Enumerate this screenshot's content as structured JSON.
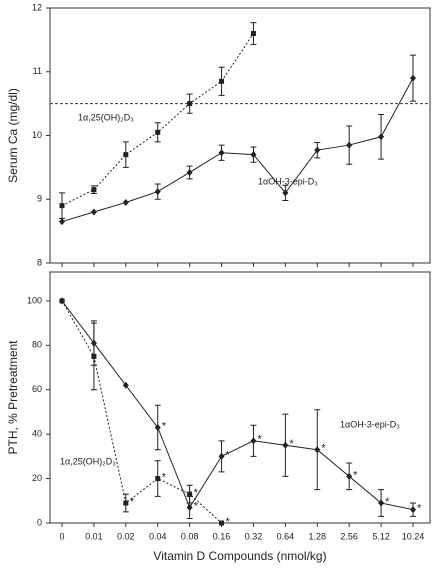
{
  "chart_data": [
    {
      "type": "line",
      "y_label": "Serum Ca (mg/dl)",
      "categories": [
        "0",
        "0.01",
        "0.02",
        "0.04",
        "0.08",
        "0.16",
        "0.32",
        "0.64",
        "1.28",
        "2.56",
        "5.12",
        "10.24"
      ],
      "ylim": [
        8,
        12
      ],
      "yticks": [
        8,
        9,
        10,
        11,
        12
      ],
      "reference_line": 10.5,
      "series": [
        {
          "name": "1α,25(OH)₂D₃",
          "color": "#222222",
          "line_style": "dotted",
          "marker": "square",
          "values": [
            8.9,
            9.15,
            9.7,
            10.05,
            10.5,
            10.85,
            11.6,
            null,
            null,
            null,
            null,
            null
          ],
          "errors": [
            0.2,
            0.06,
            0.2,
            0.15,
            0.15,
            0.22,
            0.17,
            null,
            null,
            null,
            null,
            null
          ]
        },
        {
          "name": "1αOH-3-epi-D₃",
          "color": "#222222",
          "line_style": "solid",
          "marker": "diamond",
          "values": [
            8.65,
            8.8,
            8.95,
            9.12,
            9.42,
            9.73,
            9.7,
            9.1,
            9.77,
            9.85,
            9.98,
            10.9
          ],
          "errors": [
            null,
            null,
            null,
            0.12,
            0.1,
            0.12,
            0.12,
            0.12,
            0.12,
            0.3,
            0.35,
            0.36
          ]
        }
      ]
    },
    {
      "type": "line",
      "y_label": "PTH, % Pretreatment",
      "x_label": "Vitamin D Compounds (nmol/kg)",
      "categories": [
        "0",
        "0.01",
        "0.02",
        "0.04",
        "0.08",
        "0.16",
        "0.32",
        "0.64",
        "1.28",
        "2.56",
        "5.12",
        "10.24"
      ],
      "ylim": [
        0,
        113
      ],
      "yticks": [
        0,
        20,
        40,
        60,
        80,
        100
      ],
      "marker_text": "*",
      "series": [
        {
          "name": "1α,25(OH)₂D₃",
          "color": "#222222",
          "line_style": "dotted",
          "marker": "square",
          "values": [
            100,
            75,
            9,
            20,
            13,
            0,
            null,
            null,
            null,
            null,
            null,
            null
          ],
          "errors": [
            null,
            15,
            4,
            8,
            4,
            null,
            null,
            null,
            null,
            null,
            null,
            null
          ],
          "significant": [
            false,
            false,
            true,
            true,
            true,
            true,
            false,
            false,
            false,
            false,
            false,
            false
          ]
        },
        {
          "name": "1αOH-3-epi-D₃",
          "color": "#222222",
          "line_style": "solid",
          "marker": "diamond",
          "values": [
            100,
            81,
            62,
            43,
            7,
            30,
            37,
            35,
            33,
            21,
            9,
            6
          ],
          "errors": [
            null,
            10,
            null,
            10,
            5,
            7,
            7,
            14,
            18,
            6,
            6,
            3
          ],
          "significant": [
            false,
            false,
            false,
            true,
            true,
            true,
            true,
            true,
            true,
            true,
            true,
            true
          ]
        }
      ]
    }
  ]
}
